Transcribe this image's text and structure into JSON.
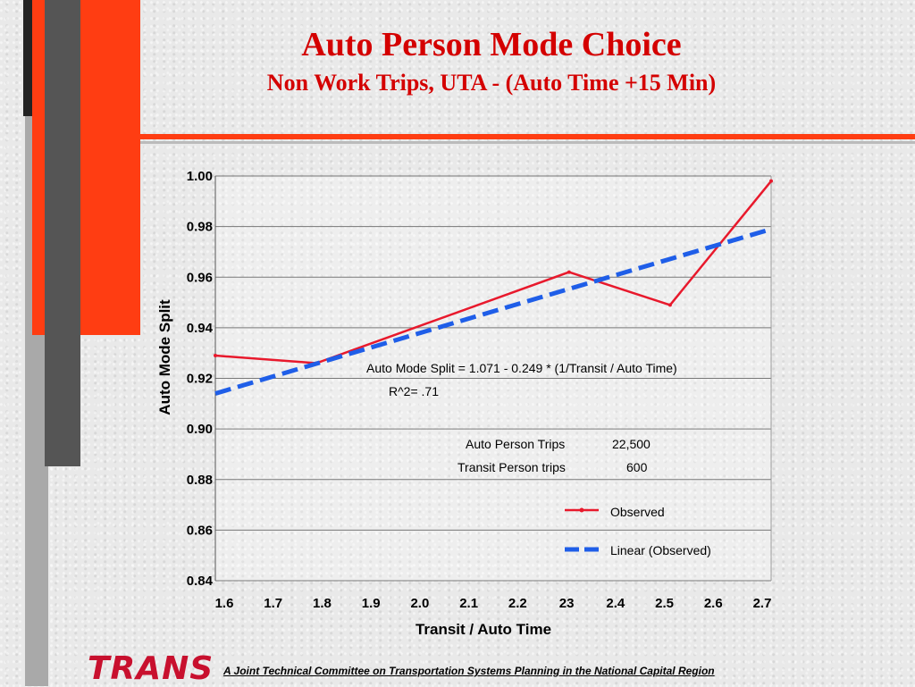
{
  "header": {
    "title": "Auto Person Mode Choice",
    "subtitle": "Non Work Trips, UTA - (Auto Time +15 Min)"
  },
  "annotations": {
    "equation": "Auto Mode Split = 1.071 - 0.249 * (1/Transit / Auto Time)",
    "r2": "R^2= .71",
    "auto_trips_label": "Auto Person Trips",
    "auto_trips_value": "22,500",
    "transit_trips_label": "Transit Person trips",
    "transit_trips_value": "600"
  },
  "footer": {
    "logo": "TRANS",
    "text": "A Joint Technical Committee on Transportation Systems Planning in the National Capital Region"
  },
  "colors": {
    "observed": "#e8192c",
    "linear": "#1f5ee8",
    "accent": "#ff3d12"
  },
  "chart_data": {
    "type": "line",
    "xlabel": "Transit / Auto Time",
    "ylabel": "Auto Mode Split",
    "ylim": [
      0.84,
      1.0
    ],
    "y_ticks": [
      "0.84",
      "0.86",
      "0.88",
      "0.90",
      "0.92",
      "0.94",
      "0.96",
      "0.98",
      "1.00"
    ],
    "x_ticks": [
      "1.6",
      "1.7",
      "1.8",
      "1.9",
      "2.0",
      "2.1",
      "2.2",
      "23",
      "2.4",
      "2.5",
      "2.6",
      "2.7"
    ],
    "grid": true,
    "legend_position": "bottom-right",
    "series": [
      {
        "name": "Observed",
        "style": "solid",
        "points": [
          {
            "x": 1.6,
            "y": 0.929
          },
          {
            "x": 1.8,
            "y": 0.926
          },
          {
            "x": 2.3,
            "y": 0.962
          },
          {
            "x": 2.5,
            "y": 0.949
          },
          {
            "x": 2.7,
            "y": 0.998
          }
        ]
      },
      {
        "name": "Linear (Observed)",
        "style": "dashed",
        "points": [
          {
            "x": 1.6,
            "y": 0.914
          },
          {
            "x": 2.7,
            "y": 0.979
          }
        ]
      }
    ]
  }
}
